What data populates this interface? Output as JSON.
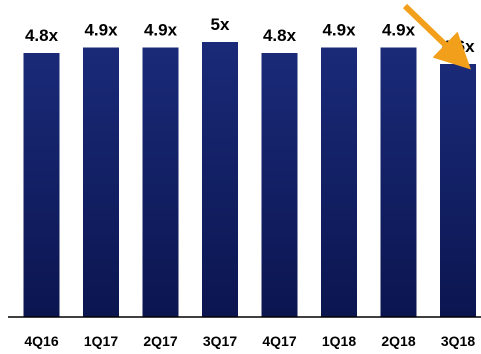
{
  "chart_data": {
    "type": "bar",
    "categories": [
      "4Q16",
      "1Q17",
      "2Q17",
      "3Q17",
      "4Q17",
      "1Q18",
      "2Q18",
      "3Q18"
    ],
    "values": [
      4.8,
      4.9,
      4.9,
      5.0,
      4.8,
      4.9,
      4.9,
      4.6
    ],
    "data_labels": [
      "4.8x",
      "4.9x",
      "4.9x",
      "5x",
      "4.8x",
      "4.9x",
      "4.9x",
      "4.6x"
    ],
    "title": "",
    "xlabel": "",
    "ylabel": "",
    "ylim": [
      0,
      5
    ],
    "grid": false,
    "bar_color_top": "#1a2a78",
    "bar_color_bottom": "#0b1550",
    "arrow_color": "#f2a01c"
  }
}
